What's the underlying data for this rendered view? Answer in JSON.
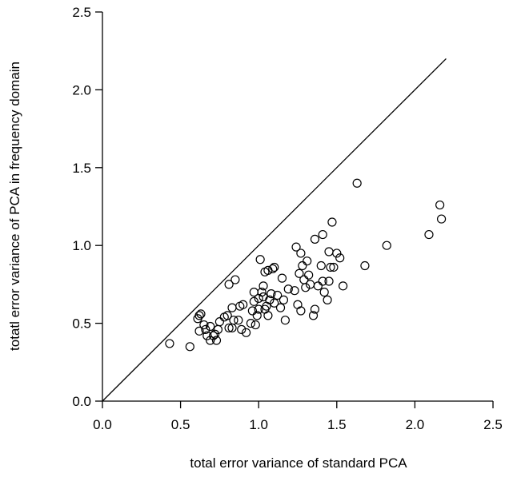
{
  "chart_data": {
    "type": "scatter",
    "title": "",
    "xlabel": "total error variance of standard PCA",
    "ylabel": "totatl error variance of PCA in frequency domain",
    "xlim": [
      0.0,
      2.5
    ],
    "ylim": [
      0.0,
      2.5
    ],
    "xticks": [
      "0.0",
      "0.5",
      "1.0",
      "1.5",
      "2.0",
      "2.5"
    ],
    "yticks": [
      "0.0",
      "0.5",
      "1.0",
      "1.5",
      "2.0",
      "2.5"
    ],
    "reference_line": {
      "type": "identity",
      "from": [
        0.0,
        0.0
      ],
      "to": [
        2.2,
        2.2
      ]
    },
    "grid": false,
    "marker": "open-circle",
    "points": [
      [
        0.43,
        0.37
      ],
      [
        0.56,
        0.35
      ],
      [
        0.61,
        0.53
      ],
      [
        0.62,
        0.55
      ],
      [
        0.63,
        0.56
      ],
      [
        0.62,
        0.45
      ],
      [
        0.65,
        0.49
      ],
      [
        0.66,
        0.46
      ],
      [
        0.67,
        0.42
      ],
      [
        0.69,
        0.39
      ],
      [
        0.69,
        0.48
      ],
      [
        0.71,
        0.42
      ],
      [
        0.72,
        0.43
      ],
      [
        0.73,
        0.39
      ],
      [
        0.74,
        0.46
      ],
      [
        0.75,
        0.51
      ],
      [
        0.78,
        0.54
      ],
      [
        0.8,
        0.55
      ],
      [
        0.81,
        0.75
      ],
      [
        0.81,
        0.47
      ],
      [
        0.83,
        0.47
      ],
      [
        0.83,
        0.6
      ],
      [
        0.84,
        0.52
      ],
      [
        0.85,
        0.78
      ],
      [
        0.87,
        0.52
      ],
      [
        0.88,
        0.61
      ],
      [
        0.89,
        0.46
      ],
      [
        0.9,
        0.62
      ],
      [
        0.92,
        0.44
      ],
      [
        0.95,
        0.5
      ],
      [
        0.96,
        0.58
      ],
      [
        0.97,
        0.64
      ],
      [
        0.97,
        0.7
      ],
      [
        0.98,
        0.49
      ],
      [
        0.99,
        0.55
      ],
      [
        1.0,
        0.59
      ],
      [
        1.0,
        0.66
      ],
      [
        1.01,
        0.91
      ],
      [
        1.02,
        0.7
      ],
      [
        1.03,
        0.67
      ],
      [
        1.03,
        0.74
      ],
      [
        1.04,
        0.83
      ],
      [
        1.04,
        0.59
      ],
      [
        1.05,
        0.61
      ],
      [
        1.06,
        0.84
      ],
      [
        1.06,
        0.55
      ],
      [
        1.07,
        0.65
      ],
      [
        1.08,
        0.69
      ],
      [
        1.09,
        0.85
      ],
      [
        1.1,
        0.63
      ],
      [
        1.1,
        0.86
      ],
      [
        1.12,
        0.68
      ],
      [
        1.14,
        0.6
      ],
      [
        1.15,
        0.79
      ],
      [
        1.16,
        0.65
      ],
      [
        1.17,
        0.52
      ],
      [
        1.19,
        0.72
      ],
      [
        1.23,
        0.71
      ],
      [
        1.24,
        0.99
      ],
      [
        1.25,
        0.62
      ],
      [
        1.26,
        0.82
      ],
      [
        1.27,
        0.58
      ],
      [
        1.27,
        0.95
      ],
      [
        1.28,
        0.87
      ],
      [
        1.29,
        0.78
      ],
      [
        1.3,
        0.73
      ],
      [
        1.31,
        0.9
      ],
      [
        1.32,
        0.81
      ],
      [
        1.33,
        0.75
      ],
      [
        1.35,
        0.55
      ],
      [
        1.36,
        1.04
      ],
      [
        1.36,
        0.59
      ],
      [
        1.38,
        0.74
      ],
      [
        1.4,
        0.87
      ],
      [
        1.41,
        1.07
      ],
      [
        1.41,
        0.77
      ],
      [
        1.42,
        0.7
      ],
      [
        1.44,
        0.65
      ],
      [
        1.45,
        0.77
      ],
      [
        1.45,
        0.96
      ],
      [
        1.46,
        0.86
      ],
      [
        1.47,
        1.15
      ],
      [
        1.48,
        0.86
      ],
      [
        1.5,
        0.95
      ],
      [
        1.52,
        0.92
      ],
      [
        1.54,
        0.74
      ],
      [
        1.63,
        1.4
      ],
      [
        1.68,
        0.87
      ],
      [
        1.82,
        1.0
      ],
      [
        2.09,
        1.07
      ],
      [
        2.16,
        1.26
      ],
      [
        2.17,
        1.17
      ]
    ]
  }
}
